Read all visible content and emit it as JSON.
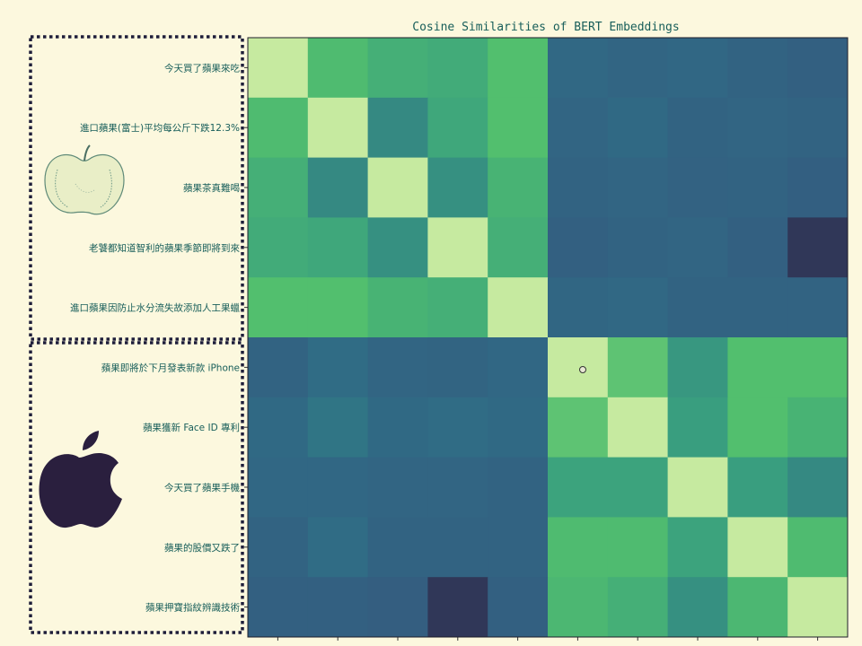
{
  "chart_data": {
    "type": "heatmap",
    "title": "Cosine Similarities of BERT Embeddings",
    "row_labels": [
      "今天買了蘋果來吃",
      "進口蘋果(富士)平均每公斤下跌12.3%",
      "蘋果茶真難喝",
      "老饕都知道智利的蘋果季節即將到來",
      "進口蘋果因防止水分流失故添加人工果蠟",
      "蘋果即將於下月發表新款 iPhone",
      "蘋果獲新 Face ID 專利",
      "今天買了蘋果手機",
      "蘋果的股價又跌了",
      "蘋果押寶指紋辨識技術"
    ],
    "col_labels": [],
    "values": [
      [
        1.0,
        0.78,
        0.72,
        0.7,
        0.8,
        0.45,
        0.42,
        0.44,
        0.4,
        0.38
      ],
      [
        0.78,
        1.0,
        0.58,
        0.68,
        0.8,
        0.42,
        0.46,
        0.4,
        0.42,
        0.4
      ],
      [
        0.72,
        0.58,
        1.0,
        0.6,
        0.74,
        0.4,
        0.42,
        0.39,
        0.4,
        0.37
      ],
      [
        0.7,
        0.68,
        0.6,
        1.0,
        0.72,
        0.38,
        0.4,
        0.42,
        0.38,
        0.14
      ],
      [
        0.8,
        0.8,
        0.74,
        0.72,
        1.0,
        0.43,
        0.45,
        0.4,
        0.4,
        0.4
      ],
      [
        0.4,
        0.48,
        0.42,
        0.41,
        0.44,
        1.0,
        0.82,
        0.62,
        0.8,
        0.8
      ],
      [
        0.46,
        0.52,
        0.46,
        0.48,
        0.46,
        0.82,
        1.0,
        0.64,
        0.8,
        0.74
      ],
      [
        0.44,
        0.44,
        0.42,
        0.42,
        0.4,
        0.66,
        0.66,
        1.0,
        0.64,
        0.58
      ],
      [
        0.4,
        0.48,
        0.4,
        0.4,
        0.4,
        0.78,
        0.78,
        0.66,
        1.0,
        0.78
      ],
      [
        0.38,
        0.38,
        0.36,
        0.14,
        0.38,
        0.76,
        0.72,
        0.6,
        0.76,
        1.0
      ]
    ],
    "colormap": [
      "#2d1e3e",
      "#345d80",
      "#2f6e86",
      "#3aa17e",
      "#52bf6e",
      "#c6eaa0"
    ],
    "groups": [
      {
        "rows": [
          0,
          4
        ],
        "icon": "fruit-apple-icon"
      },
      {
        "rows": [
          5,
          9
        ],
        "icon": "apple-logo-icon"
      }
    ],
    "colorbar": false,
    "grid": false
  },
  "colors": {
    "background": "#fcf8de",
    "text": "#175e5a",
    "box": "#1e1e3a",
    "logo": "#2a1f3e"
  }
}
